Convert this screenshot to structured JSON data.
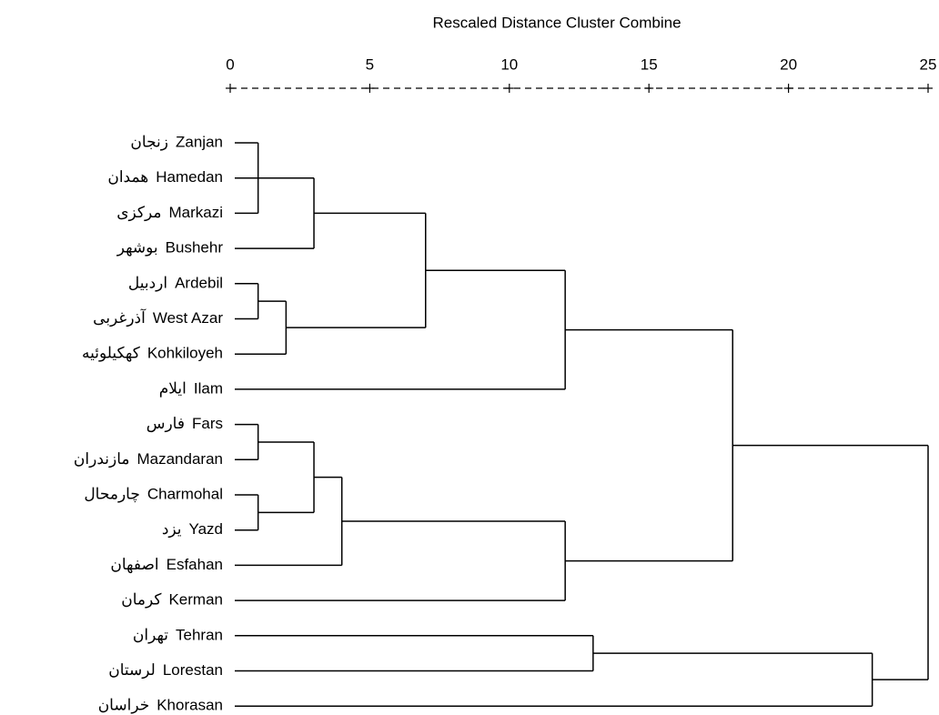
{
  "chart_data": {
    "type": "dendrogram",
    "title": "Rescaled Distance Cluster Combine",
    "xlim": [
      0,
      25
    ],
    "xticks": [
      0,
      5,
      10,
      15,
      20,
      25
    ],
    "color": "#000000",
    "tree": {
      "height": 25,
      "children": [
        {
          "height": 18,
          "children": [
            {
              "height": 12,
              "children": [
                {
                  "height": 7,
                  "children": [
                    {
                      "height": 3,
                      "children": [
                        {
                          "height": 1,
                          "children": [
                            {
                              "label": "Zanjan",
                              "label_fa": "زنجان"
                            },
                            {
                              "label": "Hamedan",
                              "label_fa": "همدان"
                            },
                            {
                              "label": "Markazi",
                              "label_fa": "مرکزی"
                            }
                          ]
                        },
                        {
                          "label": "Bushehr",
                          "label_fa": "بوشهر"
                        }
                      ]
                    },
                    {
                      "height": 2,
                      "children": [
                        {
                          "height": 1,
                          "children": [
                            {
                              "label": "Ardebil",
                              "label_fa": "اردبیل"
                            },
                            {
                              "label": "West Azar",
                              "label_fa": "آذرغربی"
                            }
                          ]
                        },
                        {
                          "label": "Kohkiloyeh",
                          "label_fa": "کهکیلوئیه"
                        }
                      ]
                    }
                  ]
                },
                {
                  "label": "Ilam",
                  "label_fa": "ایلام"
                }
              ]
            },
            {
              "height": 12,
              "children": [
                {
                  "height": 4,
                  "children": [
                    {
                      "height": 3,
                      "children": [
                        {
                          "height": 1,
                          "children": [
                            {
                              "label": "Fars",
                              "label_fa": "فارس"
                            },
                            {
                              "label": "Mazandaran",
                              "label_fa": "مازندران"
                            }
                          ]
                        },
                        {
                          "height": 1,
                          "children": [
                            {
                              "label": "Charmohal",
                              "label_fa": "چارمحال"
                            },
                            {
                              "label": "Yazd",
                              "label_fa": "یزد"
                            }
                          ]
                        }
                      ]
                    },
                    {
                      "label": "Esfahan",
                      "label_fa": "اصفهان"
                    }
                  ]
                },
                {
                  "label": "Kerman",
                  "label_fa": "کرمان"
                }
              ]
            }
          ]
        },
        {
          "height": 23,
          "children": [
            {
              "height": 13,
              "children": [
                {
                  "label": "Tehran",
                  "label_fa": "تهران"
                },
                {
                  "label": "Lorestan",
                  "label_fa": "لرستان"
                }
              ]
            },
            {
              "label": "Khorasan",
              "label_fa": "خراسان"
            }
          ]
        }
      ]
    }
  }
}
